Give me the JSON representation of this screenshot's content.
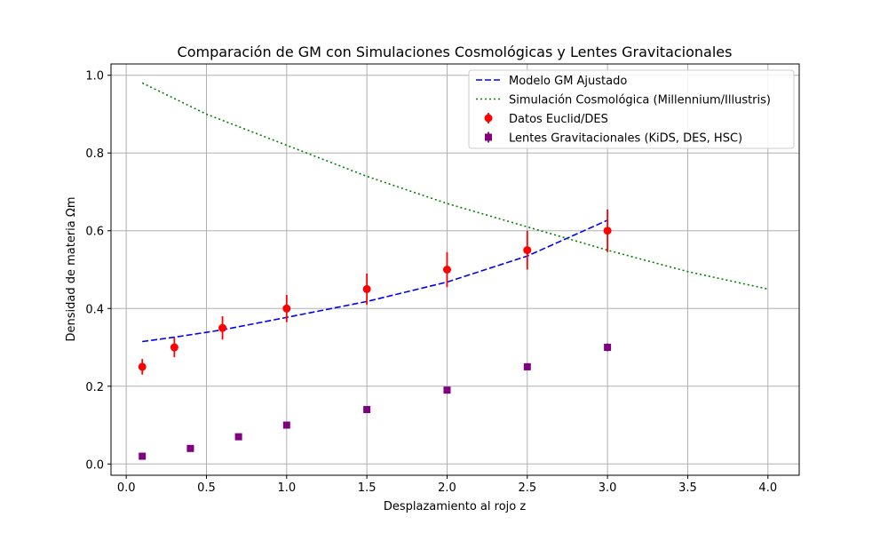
{
  "chart_data": {
    "type": "line",
    "title": "Comparación de GM con Simulaciones Cosmológicas y Lentes Gravitacionales",
    "xlabel": "Desplazamiento al rojo z",
    "ylabel": "Densidad de materia Ωm",
    "xlim": [
      -0.095,
      4.195
    ],
    "ylim": [
      -0.029,
      1.029
    ],
    "xticks": [
      0.0,
      0.5,
      1.0,
      1.5,
      2.0,
      2.5,
      3.0,
      3.5,
      4.0
    ],
    "xtick_labels": [
      "0.0",
      "0.5",
      "1.0",
      "1.5",
      "2.0",
      "2.5",
      "3.0",
      "3.5",
      "4.0"
    ],
    "yticks": [
      0.0,
      0.2,
      0.4,
      0.6,
      0.8,
      1.0
    ],
    "ytick_labels": [
      "0.0",
      "0.2",
      "0.4",
      "0.6",
      "0.8",
      "1.0"
    ],
    "grid": true,
    "legend_position": "top-right",
    "series": [
      {
        "name": "Modelo GM Ajustado",
        "kind": "line",
        "style": "dashed",
        "color": "#0000ff",
        "x": [
          0.1,
          0.3,
          0.6,
          1.0,
          1.5,
          2.0,
          2.5,
          3.0
        ],
        "y": [
          0.315,
          0.326,
          0.345,
          0.377,
          0.418,
          0.468,
          0.535,
          0.627
        ]
      },
      {
        "name": "Simulación Cosmológica (Millennium/Illustris)",
        "kind": "line",
        "style": "dotted",
        "color": "#008000",
        "x": [
          0.1,
          0.5,
          1.0,
          1.5,
          2.0,
          2.5,
          3.0,
          3.5,
          4.0
        ],
        "y": [
          0.98,
          0.9,
          0.82,
          0.74,
          0.67,
          0.61,
          0.55,
          0.495,
          0.45
        ]
      },
      {
        "name": "Datos Euclid/DES",
        "kind": "errorbar",
        "marker": "circle",
        "color": "#ff0000",
        "x": [
          0.1,
          0.3,
          0.6,
          1.0,
          1.5,
          2.0,
          2.5,
          3.0
        ],
        "y": [
          0.25,
          0.3,
          0.35,
          0.4,
          0.45,
          0.5,
          0.55,
          0.6
        ],
        "yerr": [
          0.02,
          0.025,
          0.03,
          0.035,
          0.04,
          0.045,
          0.05,
          0.055
        ]
      },
      {
        "name": "Lentes Gravitacionales (KiDS, DES, HSC)",
        "kind": "errorbar",
        "marker": "square",
        "color": "#800080",
        "x": [
          0.1,
          0.4,
          0.7,
          1.0,
          1.5,
          2.0,
          2.5,
          3.0
        ],
        "y": [
          0.02,
          0.04,
          0.07,
          0.1,
          0.14,
          0.19,
          0.25,
          0.3
        ],
        "yerr": [
          0.003,
          0.004,
          0.005,
          0.006,
          0.007,
          0.008,
          0.009,
          0.01
        ]
      }
    ]
  }
}
